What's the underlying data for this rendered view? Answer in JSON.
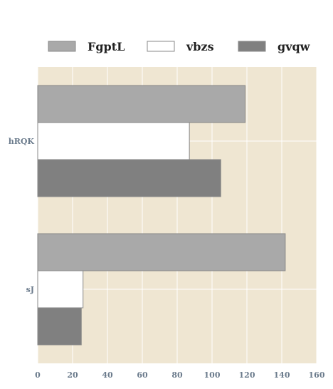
{
  "chart_data": {
    "type": "bar",
    "orientation": "horizontal",
    "categories": [
      "hRQK",
      "sJ"
    ],
    "series": [
      {
        "name": "FgptL",
        "values": [
          119,
          142
        ],
        "color": "#a9a9a9"
      },
      {
        "name": "vbzs",
        "values": [
          87,
          26
        ],
        "color": "#ffffff"
      },
      {
        "name": "gvqw",
        "values": [
          105,
          25
        ],
        "color": "#808080"
      }
    ],
    "xlim": [
      0,
      160
    ],
    "xticks": [
      "0",
      "20",
      "40",
      "60",
      "80",
      "100",
      "120",
      "140",
      "160"
    ],
    "grid": true,
    "legend_position": "top",
    "background_color": "#efe6d2",
    "title": "",
    "xlabel": "",
    "ylabel": ""
  }
}
